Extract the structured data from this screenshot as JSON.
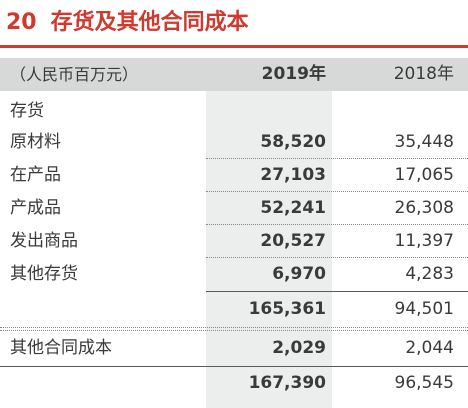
{
  "title": {
    "number": "20",
    "text": "存货及其他合同成本"
  },
  "header": {
    "unit": "（人民币百万元）",
    "year_current": "2019年",
    "year_prior": "2018年"
  },
  "rows": [
    {
      "label": "存货",
      "v2019": "",
      "v2018": ""
    },
    {
      "label": "原材料",
      "v2019": "58,520",
      "v2018": "35,448"
    },
    {
      "label": "在产品",
      "v2019": "27,103",
      "v2018": "17,065"
    },
    {
      "label": "产成品",
      "v2019": "52,241",
      "v2018": "26,308"
    },
    {
      "label": "发出商品",
      "v2019": "20,527",
      "v2018": "11,397"
    },
    {
      "label": "其他存货",
      "v2019": "6,970",
      "v2018": "4,283"
    },
    {
      "label": "",
      "v2019": "165,361",
      "v2018": "94,501"
    },
    {
      "label": "其他合同成本",
      "v2019": "2,029",
      "v2018": "2,044"
    },
    {
      "label": "",
      "v2019": "167,390",
      "v2018": "96,545"
    }
  ],
  "colors": {
    "accent": "#d0392e",
    "header_band": "#d7d9d8",
    "column_shade": "#eceeed",
    "text": "#3a3a3a"
  }
}
